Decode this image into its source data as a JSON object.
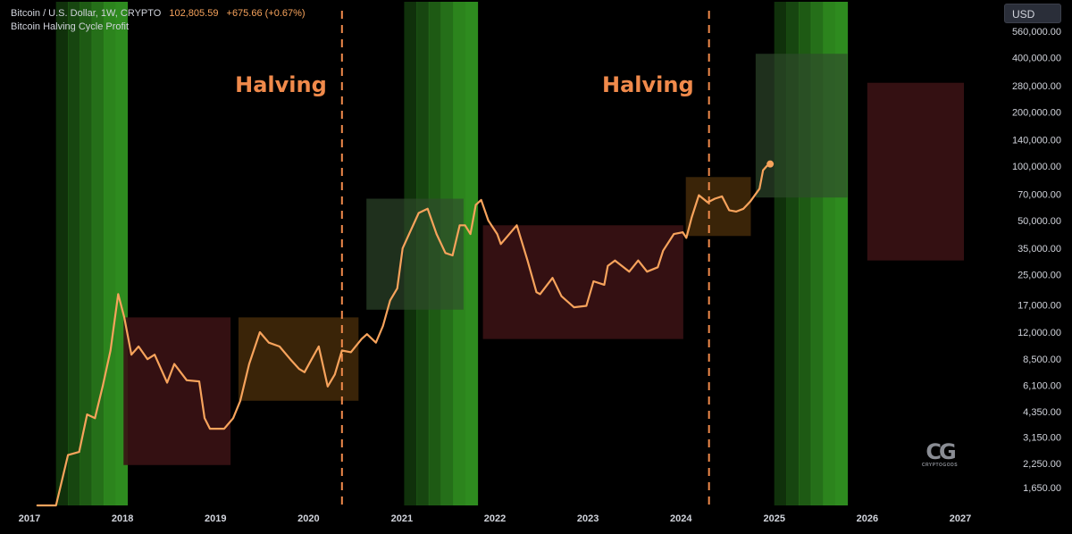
{
  "header": {
    "symbol": "Bitcoin / U.S. Dollar, 1W, CRYPTO",
    "price": "102,805.59",
    "change": "+675.66 (+0.67%)",
    "indicator": "Bitcoin Halving Cycle Profit"
  },
  "toolbar": {
    "currency": "USD"
  },
  "logo": {
    "text": "CRYPTOGODS"
  },
  "colors": {
    "background": "#000000",
    "price_line": "#f7a35c",
    "halving_line": "#f08a4b",
    "green_band": "#2e8b1f",
    "red_box": "#3a1214",
    "orange_box": "#3d2608",
    "light_green_box": "#2f4a2c",
    "axis_text": "#d1d4dc"
  },
  "chart_data": {
    "type": "line",
    "y_scale": "log",
    "title": "Bitcoin / U.S. Dollar, 1W, CRYPTO",
    "xlabel": "",
    "ylabel": "USD",
    "xlim": [
      "2017-01-01",
      "2027-03-01"
    ],
    "ylim": [
      1400,
      700000
    ],
    "x_ticks": [
      "2017",
      "2018",
      "2019",
      "2020",
      "2021",
      "2022",
      "2023",
      "2024",
      "2025",
      "2026",
      "2027"
    ],
    "y_ticks": [
      "560,000.00",
      "400,000.00",
      "280,000.00",
      "200,000.00",
      "140,000.00",
      "100,000.00",
      "70,000.00",
      "50,000.00",
      "35,000.00",
      "25,000.00",
      "17,000.00",
      "12,000.00",
      "8,500.00",
      "6,100.00",
      "4,350.00",
      "3,150.00",
      "2,250.00",
      "1,650.00"
    ],
    "series": [
      {
        "name": "Bitcoin / U.S. Dollar",
        "x": [
          "2017-02-01",
          "2017-04-15",
          "2017-06-01",
          "2017-07-15",
          "2017-08-15",
          "2017-09-15",
          "2017-10-15",
          "2017-11-15",
          "2017-12-15",
          "2018-01-08",
          "2018-02-05",
          "2018-03-05",
          "2018-04-09",
          "2018-05-07",
          "2018-06-25",
          "2018-07-23",
          "2018-09-10",
          "2018-10-29",
          "2018-11-19",
          "2018-12-10",
          "2019-02-04",
          "2019-03-11",
          "2019-04-08",
          "2019-05-13",
          "2019-06-24",
          "2019-07-29",
          "2019-09-09",
          "2019-10-21",
          "2019-11-25",
          "2019-12-16",
          "2020-01-13",
          "2020-02-10",
          "2020-03-16",
          "2020-04-13",
          "2020-05-11",
          "2020-06-15",
          "2020-07-27",
          "2020-08-17",
          "2020-09-21",
          "2020-10-19",
          "2020-11-16",
          "2020-12-14",
          "2021-01-04",
          "2021-02-08",
          "2021-03-08",
          "2021-04-12",
          "2021-05-17",
          "2021-06-21",
          "2021-07-19",
          "2021-08-16",
          "2021-09-06",
          "2021-09-27",
          "2021-10-18",
          "2021-11-08",
          "2021-12-06",
          "2022-01-10",
          "2022-01-24",
          "2022-03-28",
          "2022-05-09",
          "2022-06-13",
          "2022-06-27",
          "2022-08-15",
          "2022-09-19",
          "2022-11-07",
          "2022-12-26",
          "2023-01-23",
          "2023-03-06",
          "2023-03-20",
          "2023-04-17",
          "2023-06-12",
          "2023-07-17",
          "2023-08-21",
          "2023-10-02",
          "2023-10-23",
          "2023-12-04",
          "2024-01-08",
          "2024-01-22",
          "2024-02-12",
          "2024-03-11",
          "2024-04-15",
          "2024-05-13",
          "2024-06-10",
          "2024-07-08",
          "2024-08-05",
          "2024-09-02",
          "2024-09-30",
          "2024-11-04",
          "2024-11-18",
          "2024-12-02",
          "2024-12-16"
        ],
        "values": [
          1000,
          1300,
          2500,
          2600,
          4200,
          4000,
          6000,
          9500,
          19500,
          14500,
          9000,
          10000,
          8500,
          9000,
          6300,
          8000,
          6500,
          6400,
          4000,
          3500,
          3500,
          4000,
          5000,
          8000,
          12000,
          10500,
          10000,
          8500,
          7500,
          7200,
          8500,
          10000,
          6000,
          7000,
          9500,
          9300,
          11000,
          11700,
          10500,
          13000,
          18000,
          21000,
          35000,
          45000,
          55000,
          58000,
          42000,
          33000,
          32000,
          47000,
          47000,
          42000,
          61000,
          65000,
          50000,
          42000,
          37000,
          47000,
          30000,
          20000,
          19500,
          24000,
          19000,
          16500,
          16800,
          23000,
          22000,
          28000,
          30000,
          26000,
          30000,
          26000,
          27500,
          34000,
          42000,
          43000,
          40000,
          52000,
          69000,
          63000,
          66000,
          68000,
          57000,
          56000,
          58000,
          64000,
          75000,
          95000,
          100000,
          102805.59
        ]
      }
    ],
    "annotations": [
      {
        "type": "halving",
        "label": "Halving",
        "date": "2020-05-11"
      },
      {
        "type": "halving",
        "label": "Halving",
        "date": "2024-04-20"
      }
    ],
    "green_bands": [
      {
        "from": "2017-04-15",
        "to": "2018-01-20"
      },
      {
        "from": "2021-01-10",
        "to": "2021-10-25"
      },
      {
        "from": "2025-01-01",
        "to": "2025-10-15"
      }
    ],
    "boxes": [
      {
        "kind": "red",
        "from": "2018-01-05",
        "to": "2019-03-01",
        "low": 2200,
        "high": 14500
      },
      {
        "kind": "orange",
        "from": "2019-04-01",
        "to": "2020-07-15",
        "low": 5000,
        "high": 14500
      },
      {
        "kind": "light_green",
        "from": "2020-08-15",
        "to": "2021-08-31",
        "low": 16000,
        "high": 66000
      },
      {
        "kind": "red",
        "from": "2021-11-15",
        "to": "2024-01-10",
        "low": 11000,
        "high": 47000
      },
      {
        "kind": "orange",
        "from": "2024-01-20",
        "to": "2024-10-01",
        "low": 41000,
        "high": 87000
      },
      {
        "kind": "light_green",
        "from": "2024-10-20",
        "to": "2025-10-15",
        "low": 67000,
        "high": 420000
      },
      {
        "kind": "red",
        "from": "2026-01-01",
        "to": "2027-01-15",
        "low": 30000,
        "high": 290000
      }
    ]
  }
}
